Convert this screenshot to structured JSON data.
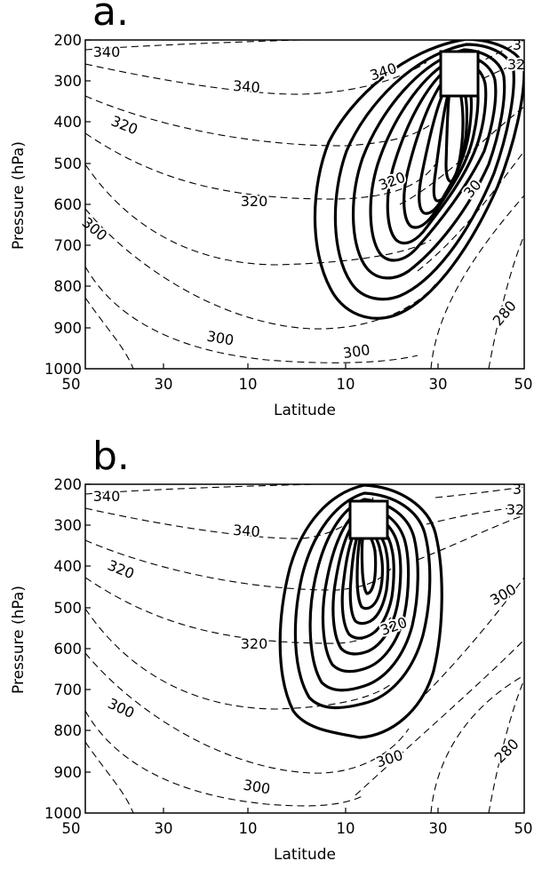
{
  "chart_data": [
    {
      "type": "contour",
      "panel_label": "a.",
      "xlabel": "Latitude",
      "ylabel": "Pressure (hPa)",
      "x_ticks": [
        "50",
        "30",
        "10",
        "10",
        "30",
        "50"
      ],
      "y_ticks": [
        "200",
        "300",
        "400",
        "500",
        "600",
        "700",
        "800",
        "900",
        "1000"
      ],
      "ylim": [
        1000,
        200
      ],
      "grid": false,
      "dashed_contour_labels": [
        "340",
        "340",
        "340",
        "320",
        "320",
        "320",
        "300",
        "300",
        "300",
        "280",
        "30",
        "32",
        "3"
      ],
      "solid_contour_feature": {
        "center_latitude": "35N",
        "top_pressure_hPa": 200,
        "bottom_pressure_hPa": 870
      }
    },
    {
      "type": "contour",
      "panel_label": "b.",
      "xlabel": "Latitude",
      "ylabel": "Pressure (hPa)",
      "x_ticks": [
        "50",
        "30",
        "10",
        "10",
        "30",
        "50"
      ],
      "y_ticks": [
        "200",
        "300",
        "400",
        "500",
        "600",
        "700",
        "800",
        "900",
        "1000"
      ],
      "ylim": [
        1000,
        200
      ],
      "grid": false,
      "dashed_contour_labels": [
        "340",
        "340",
        "320",
        "320",
        "320",
        "300",
        "300",
        "300",
        "300",
        "280",
        "32",
        "3"
      ],
      "solid_contour_feature": {
        "center_latitude": "15N",
        "top_pressure_hPa": 200,
        "bottom_pressure_hPa": 815
      }
    }
  ]
}
